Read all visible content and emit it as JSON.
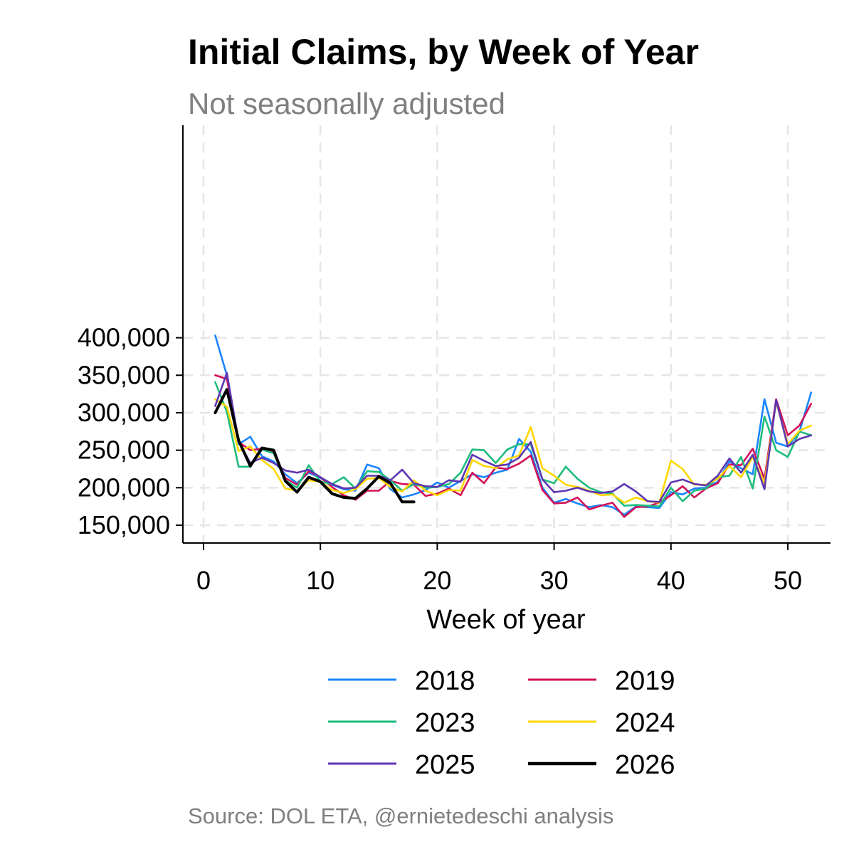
{
  "chart_data": {
    "type": "line",
    "title": "Initial Claims, by Week of Year",
    "subtitle": "Not seasonally adjusted",
    "source": "Source: DOL ETA, @ernietedeschi analysis",
    "xlabel": "Week of year",
    "ylabel": "",
    "xlim": [
      0,
      53
    ],
    "ylim": [
      145000,
      415000
    ],
    "xticks": [
      0,
      10,
      20,
      30,
      40,
      50
    ],
    "yticks": [
      150000,
      200000,
      250000,
      300000,
      350000,
      400000
    ],
    "xtick_labels": [
      "0",
      "10",
      "20",
      "30",
      "40",
      "50"
    ],
    "ytick_labels": [
      "150,000",
      "200,000",
      "250,000",
      "300,000",
      "350,000",
      "400,000"
    ],
    "grid": "dashed",
    "legend_position": "bottom",
    "series": [
      {
        "name": "2018",
        "color": "#1a85ff",
        "values": [
          403000,
          350000,
          258000,
          268000,
          242000,
          235000,
          218000,
          206000,
          220000,
          213000,
          204000,
          198000,
          196000,
          231000,
          226000,
          198000,
          187000,
          191000,
          197000,
          207000,
          200000,
          209000,
          218000,
          214000,
          220000,
          224000,
          265000,
          248000,
          200000,
          180000,
          185000,
          179000,
          174000,
          177000,
          174000,
          164000,
          175000,
          174000,
          173000,
          194000,
          191000,
          199000,
          200000,
          208000,
          235000,
          226000,
          218000,
          318000,
          260000,
          255000,
          275000,
          327000
        ]
      },
      {
        "name": "2019",
        "color": "#d41159",
        "values": [
          350000,
          345000,
          261000,
          250000,
          252000,
          248000,
          213000,
          204000,
          222000,
          214000,
          201000,
          190000,
          184000,
          196000,
          196000,
          209000,
          205000,
          204000,
          189000,
          192000,
          199000,
          190000,
          220000,
          206000,
          227000,
          225000,
          232000,
          243000,
          197000,
          179000,
          180000,
          187000,
          171000,
          176000,
          180000,
          161000,
          174000,
          175000,
          180000,
          190000,
          202000,
          187000,
          199000,
          206000,
          231000,
          230000,
          252000,
          212000,
          318000,
          270000,
          283000,
          312000
        ]
      },
      {
        "name": "2023",
        "color": "#1dbc7d",
        "values": [
          341000,
          301000,
          228000,
          228000,
          251000,
          246000,
          210000,
          200000,
          230000,
          208000,
          205000,
          214000,
          199000,
          222000,
          221000,
          210000,
          196000,
          205000,
          200000,
          201000,
          205000,
          220000,
          251000,
          250000,
          233000,
          251000,
          258000,
          258000,
          211000,
          206000,
          228000,
          212000,
          200000,
          194000,
          192000,
          176000,
          177000,
          176000,
          175000,
          200000,
          182000,
          196000,
          199000,
          214000,
          216000,
          241000,
          199000,
          295000,
          250000,
          241000,
          275000,
          270000
        ]
      },
      {
        "name": "2024",
        "color": "#ffd700",
        "values": [
          318000,
          308000,
          249000,
          255000,
          237000,
          225000,
          199000,
          196000,
          210000,
          208000,
          197000,
          193000,
          198000,
          212000,
          213000,
          201000,
          195000,
          210000,
          196000,
          190000,
          197000,
          196000,
          237000,
          229000,
          226000,
          238000,
          243000,
          281000,
          226000,
          216000,
          204000,
          201000,
          196000,
          190000,
          191000,
          180000,
          187000,
          182000,
          180000,
          236000,
          225000,
          204000,
          204000,
          212000,
          229000,
          214000,
          241000,
          206000,
          315000,
          258000,
          276000,
          283000
        ]
      },
      {
        "name": "2025",
        "color": "#5e35b1",
        "values": [
          309000,
          353000,
          262000,
          233000,
          240000,
          233000,
          223000,
          220000,
          224000,
          214000,
          205000,
          199000,
          200000,
          216000,
          216000,
          210000,
          224000,
          206000,
          202000,
          201000,
          210000,
          208000,
          244000,
          236000,
          229000,
          231000,
          240000,
          261000,
          211000,
          194000,
          196000,
          200000,
          195000,
          193000,
          195000,
          205000,
          195000,
          182000,
          181000,
          207000,
          211000,
          205000,
          203000,
          216000,
          239000,
          220000,
          244000,
          198000,
          317000,
          255000,
          265000,
          270000
        ]
      },
      {
        "name": "2026",
        "color": "#000000",
        "values": [
          300000,
          331000,
          263000,
          229000,
          253000,
          250000,
          209000,
          194000,
          214000,
          208000,
          192000,
          187000,
          186000,
          199000,
          215000,
          206000,
          181000,
          181000
        ]
      }
    ]
  }
}
